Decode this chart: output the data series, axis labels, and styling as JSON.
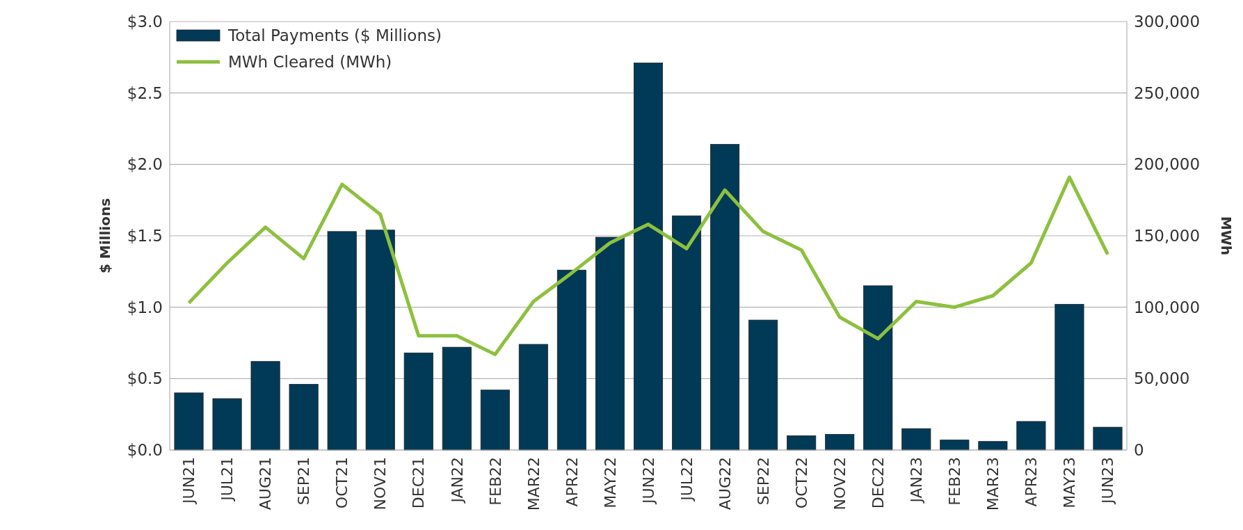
{
  "chart_data": {
    "type": "bar",
    "ylabel": "$ Millions",
    "y2label": "MWh",
    "categories": [
      "JUN21",
      "JUL21",
      "AUG21",
      "SEP21",
      "OCT21",
      "NOV21",
      "DEC21",
      "JAN22",
      "FEB22",
      "MAR22",
      "APR22",
      "MAY22",
      "JUN22",
      "JUL22",
      "AUG22",
      "SEP22",
      "OCT22",
      "NOV22",
      "DEC22",
      "JAN23",
      "FEB23",
      "MAR23",
      "APR23",
      "MAY23",
      "JUN23"
    ],
    "series": [
      {
        "name": "Total Payments ($ Millions)",
        "color": "#003a57",
        "values": [
          0.4,
          0.36,
          0.62,
          0.46,
          1.53,
          1.54,
          0.68,
          0.72,
          0.42,
          0.74,
          1.26,
          1.49,
          2.71,
          1.64,
          2.14,
          0.91,
          0.1,
          0.11,
          1.15,
          0.15,
          0.07,
          0.06,
          0.2,
          1.02,
          0.16
        ]
      },
      {
        "name": "MWh Cleared (MWh)",
        "type": "line",
        "axis": "y2",
        "color": "#8dc03f",
        "values": [
          103000,
          131000,
          156000,
          134000,
          186000,
          165000,
          80000,
          80000,
          67000,
          104000,
          124000,
          145000,
          158000,
          141000,
          182000,
          153000,
          140000,
          93000,
          78000,
          104000,
          100000,
          108000,
          131000,
          191000,
          137000
        ]
      }
    ],
    "ylim": [
      0,
      3
    ],
    "yticks": [
      {
        "value": 0,
        "label": "$0.0"
      },
      {
        "value": 0.5,
        "label": "$0.5"
      },
      {
        "value": 1,
        "label": "$1.0"
      },
      {
        "value": 1.5,
        "label": "$1.5"
      },
      {
        "value": 2,
        "label": "$2.0"
      },
      {
        "value": 2.5,
        "label": "$2.5"
      },
      {
        "value": 3,
        "label": "$3.0"
      }
    ],
    "y2lim": [
      0,
      300000
    ],
    "y2ticks": [
      0,
      {
        "value": 50000,
        "label": "50,000"
      },
      {
        "value": 100000,
        "label": "100,000"
      },
      {
        "value": 150000,
        "label": "150,000"
      },
      {
        "value": 200000,
        "label": "200,000"
      },
      {
        "value": 250000,
        "label": "250,000"
      },
      {
        "value": 300000,
        "label": "300,000"
      }
    ],
    "grid": "y",
    "legend": "top left",
    "marker": "none",
    "line_style": "solid"
  }
}
